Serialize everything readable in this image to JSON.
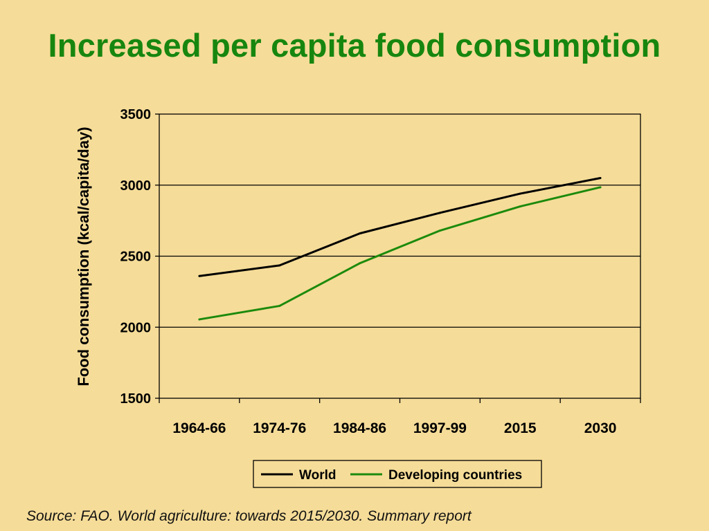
{
  "slide": {
    "title": "Increased per capita food consumption",
    "source": "Source: FAO. World agriculture: towards 2015/2030. Summary report"
  },
  "colors": {
    "background": "#F5DC98",
    "title": "#17860F",
    "world": "#000000",
    "developing": "#1C8A0C"
  },
  "chart_data": {
    "type": "line",
    "title": "",
    "xlabel": "",
    "ylabel": "Food consumption (kcal/capita/day)",
    "categories": [
      "1964-66",
      "1974-76",
      "1984-86",
      "1997-99",
      "2015",
      "2030"
    ],
    "yticks": [
      "1500",
      "2000",
      "2500",
      "3000",
      "3500"
    ],
    "ylim": [
      1500,
      3500
    ],
    "grid": true,
    "legend_position": "bottom",
    "series": [
      {
        "name": "World",
        "values": [
          2360,
          2435,
          2660,
          2805,
          2940,
          3050
        ],
        "color": "#000000"
      },
      {
        "name": "Developing countries",
        "values": [
          2055,
          2150,
          2450,
          2680,
          2850,
          2985
        ],
        "color": "#1C8A0C"
      }
    ]
  }
}
